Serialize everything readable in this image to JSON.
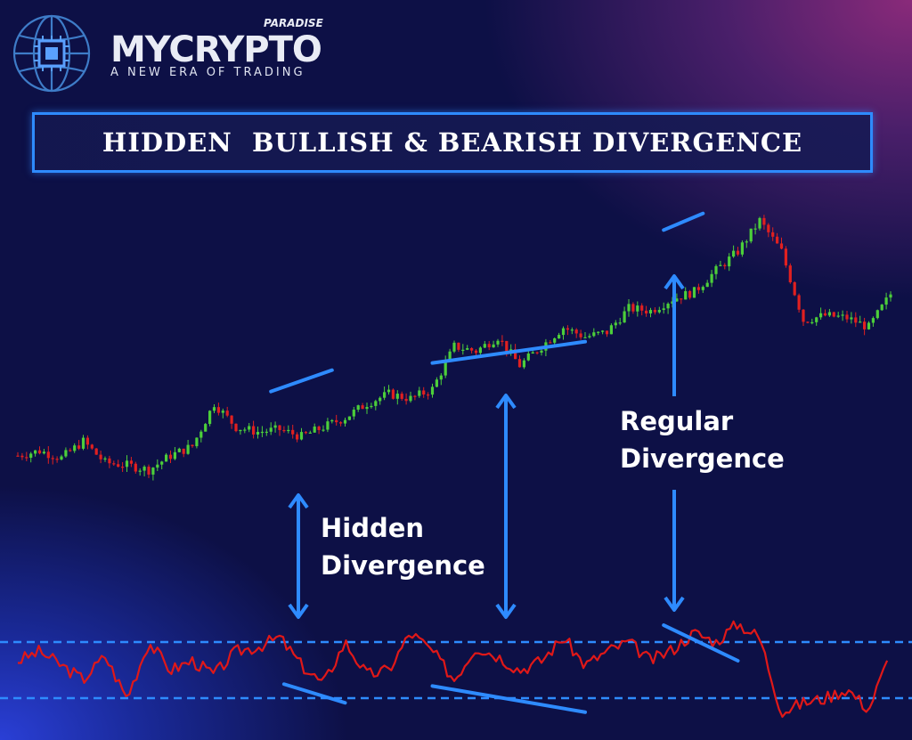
{
  "brand": {
    "name": "MYCRYPTO",
    "sub": "PARADISE",
    "tagline": "A NEW ERA OF TRADING",
    "logo_icon": "globe-chip-icon"
  },
  "banner": {
    "title": "HIDDEN  BULLISH & BEARISH DIVERGENCE"
  },
  "annotations": {
    "hidden_line1": "Hidden",
    "hidden_line2": "Divergence",
    "regular_line1": "Regular",
    "regular_line2": "Divergence"
  },
  "colors": {
    "background": "#0d1046",
    "accent_blue": "#2e8bff",
    "bull_candle": "#4ccf3a",
    "bear_candle": "#e02020",
    "oscillator": "#e01818"
  },
  "chart_data": {
    "type": "line",
    "title": "HIDDEN  BULLISH & BEARISH DIVERGENCE",
    "xlabel": "",
    "ylabel": "",
    "grid": false,
    "series": [
      {
        "kind": "price-candlesticks",
        "x": [
          0,
          5,
          10,
          15,
          20,
          25,
          30,
          35,
          40,
          45,
          50,
          55,
          60,
          65,
          70,
          75,
          80,
          85,
          90,
          95,
          100,
          105,
          110,
          115,
          120,
          125,
          130,
          135,
          140,
          145,
          150,
          155,
          160,
          165,
          170,
          175,
          180,
          185,
          190,
          195,
          200
        ],
        "values": [
          20,
          22,
          19,
          26,
          17,
          16,
          14,
          20,
          24,
          42,
          32,
          30,
          31,
          28,
          32,
          36,
          42,
          46,
          44,
          48,
          66,
          64,
          70,
          58,
          66,
          74,
          70,
          72,
          82,
          81,
          86,
          89,
          98,
          106,
          119,
          106,
          77,
          79,
          78,
          74,
          88
        ]
      },
      {
        "kind": "oscillator",
        "x": [
          0,
          5,
          10,
          15,
          20,
          25,
          30,
          35,
          40,
          45,
          50,
          55,
          60,
          65,
          70,
          75,
          80,
          85,
          90,
          95,
          100,
          105,
          110,
          115,
          120,
          125,
          130,
          135,
          140,
          145,
          150,
          155,
          160,
          165,
          170,
          175,
          180,
          185,
          190,
          195,
          200
        ],
        "values": [
          60,
          70,
          55,
          40,
          65,
          20,
          80,
          50,
          60,
          45,
          70,
          75,
          85,
          55,
          35,
          80,
          45,
          50,
          90,
          70,
          40,
          75,
          65,
          50,
          60,
          85,
          55,
          70,
          80,
          60,
          72,
          90,
          80,
          100,
          85,
          5,
          15,
          20,
          30,
          8,
          68
        ]
      }
    ],
    "divergence_lines": {
      "price": [
        {
          "x1": 58,
          "y1": 47,
          "x2": 72,
          "y2": 56
        },
        {
          "x1": 95,
          "y1": 59,
          "x2": 130,
          "y2": 68
        },
        {
          "x1": 148,
          "y1": 115,
          "x2": 157,
          "y2": 122
        }
      ],
      "oscillator": [
        {
          "x1": 61,
          "y1": 35,
          "x2": 75,
          "y2": 15
        },
        {
          "x1": 95,
          "y1": 33,
          "x2": 130,
          "y2": 5
        },
        {
          "x1": 148,
          "y1": 98,
          "x2": 165,
          "y2": 60
        }
      ]
    },
    "oscillator_bands": [
      20,
      80
    ]
  }
}
